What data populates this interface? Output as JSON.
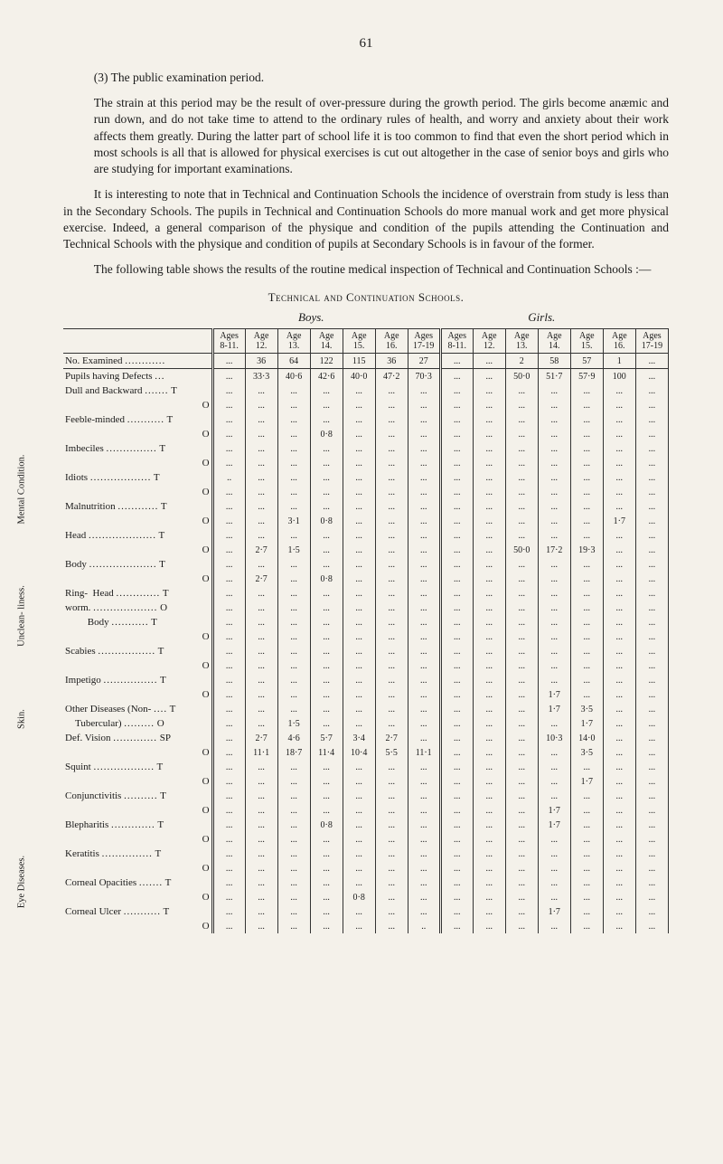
{
  "page_number": "61",
  "h3_label": "(3) The public examination period.",
  "p1": "The strain at this period may be the result of over-pressure during the growth period. The girls become anæmic and run down, and do not take time to attend to the ordinary rules of health, and worry and anxiety about their work affects them greatly. During the latter part of school life it is too common to find that even the short period which in most schools is all that is allowed for physical exercises is cut out altogether in the case of senior boys and girls who are studying for important examinations.",
  "p2": "It is interesting to note that in Technical and Continuation Schools the incidence of overstrain from study is less than in the Secondary Schools. The pupils in Technical and Continuation Schools do more manual work and get more physical exercise. Indeed, a general comparison of the physique and condition of the pupils attending the Continuation and Technical Schools with the physique and condition of pupils at Secondary Schools is in favour of the former.",
  "p3": "The following table shows the results of the routine medical inspection of Technical and Continuation Schools :—",
  "table_title": "Technical and Continuation Schools.",
  "axis_boys": "Boys.",
  "axis_girls": "Girls.",
  "columns": [
    "Ages 8-11.",
    "Age 12.",
    "Age 13.",
    "Age 14.",
    "Age 15.",
    "Age 16.",
    "Ages 17-19",
    "Ages 8-11.",
    "Age 12.",
    "Age 13.",
    "Age 14.",
    "Age 15.",
    "Age 16.",
    "Ages 17-19"
  ],
  "vert_labels": {
    "mental": "Mental Condition.",
    "unclean": "Unclean- liness.",
    "skin": "Skin.",
    "eye": "Eye Diseases."
  },
  "rows": [
    {
      "label": "No. Examined",
      "to": "",
      "v": [
        "...",
        "36",
        "64",
        "122",
        "115",
        "36",
        "27",
        "...",
        "...",
        "2",
        "58",
        "57",
        "1",
        "..."
      ]
    },
    {
      "sep": true,
      "label": "Pupils having Defects",
      "to": "",
      "v": [
        "...",
        "33·3",
        "40·6",
        "42·6",
        "40·0",
        "47·2",
        "70·3",
        "...",
        "...",
        "50·0",
        "51·7",
        "57·9",
        "100",
        "..."
      ]
    },
    {
      "label": "Dull and Backward",
      "to": "T",
      "v": [
        "...",
        "...",
        "...",
        "...",
        "...",
        "...",
        "...",
        "...",
        "...",
        "...",
        "...",
        "...",
        "...",
        "..."
      ]
    },
    {
      "label": "",
      "to": "O",
      "v": [
        "...",
        "...",
        "...",
        "...",
        "...",
        "...",
        "...",
        "...",
        "...",
        "...",
        "...",
        "...",
        "...",
        "..."
      ]
    },
    {
      "label": "Feeble-minded",
      "to": "T",
      "v": [
        "...",
        "...",
        "...",
        "...",
        "...",
        "...",
        "...",
        "...",
        "...",
        "...",
        "...",
        "...",
        "...",
        "..."
      ]
    },
    {
      "label": "",
      "to": "O",
      "v": [
        "...",
        "...",
        "...",
        "0·8",
        "...",
        "...",
        "...",
        "...",
        "...",
        "...",
        "...",
        "...",
        "...",
        "..."
      ]
    },
    {
      "label": "Imbeciles",
      "to": "T",
      "v": [
        "...",
        "...",
        "...",
        "...",
        "...",
        "...",
        "...",
        "...",
        "...",
        "...",
        "...",
        "...",
        "...",
        "..."
      ]
    },
    {
      "label": "",
      "to": "O",
      "v": [
        "...",
        "...",
        "...",
        "...",
        "...",
        "...",
        "...",
        "...",
        "...",
        "...",
        "...",
        "...",
        "...",
        "..."
      ]
    },
    {
      "label": "Idiots",
      "to": "T",
      "v": [
        "..",
        "...",
        "...",
        "...",
        "...",
        "...",
        "...",
        "...",
        "...",
        "...",
        "...",
        "...",
        "...",
        "..."
      ]
    },
    {
      "label": "",
      "to": "O",
      "v": [
        "...",
        "...",
        "...",
        "...",
        "...",
        "...",
        "...",
        "...",
        "...",
        "...",
        "...",
        "...",
        "...",
        "..."
      ]
    },
    {
      "label": "Malnutrition",
      "to": "T",
      "v": [
        "...",
        "...",
        "...",
        "...",
        "...",
        "...",
        "...",
        "...",
        "...",
        "...",
        "...",
        "...",
        "...",
        "..."
      ]
    },
    {
      "label": "",
      "to": "O",
      "v": [
        "...",
        "...",
        "3·1",
        "0·8",
        "...",
        "...",
        "...",
        "...",
        "...",
        "...",
        "...",
        "...",
        "1·7",
        "..."
      ]
    },
    {
      "label": "Head",
      "to": "T",
      "v": [
        "...",
        "...",
        "...",
        "...",
        "...",
        "...",
        "...",
        "...",
        "...",
        "...",
        "...",
        "...",
        "...",
        "..."
      ]
    },
    {
      "label": "",
      "to": "O",
      "v": [
        "...",
        "2·7",
        "1·5",
        "...",
        "...",
        "...",
        "...",
        "...",
        "...",
        "50·0",
        "17·2",
        "19·3",
        "...",
        "..."
      ]
    },
    {
      "label": "Body",
      "to": "T",
      "v": [
        "...",
        "...",
        "...",
        "...",
        "...",
        "...",
        "...",
        "...",
        "...",
        "...",
        "...",
        "...",
        "...",
        "..."
      ]
    },
    {
      "label": "",
      "to": "O",
      "v": [
        "...",
        "2·7",
        "...",
        "0·8",
        "...",
        "...",
        "...",
        "...",
        "...",
        "...",
        "...",
        "...",
        "...",
        "..."
      ]
    },
    {
      "label": "Ring-&nbsp;&nbsp;Head",
      "to": "T",
      "v": [
        "...",
        "...",
        "...",
        "...",
        "...",
        "...",
        "...",
        "...",
        "...",
        "...",
        "...",
        "...",
        "...",
        "..."
      ]
    },
    {
      "label": "worm.",
      "to": "O",
      "v": [
        "...",
        "...",
        "...",
        "...",
        "...",
        "...",
        "...",
        "...",
        "...",
        "...",
        "...",
        "...",
        "...",
        "..."
      ]
    },
    {
      "label": "&nbsp;&nbsp;&nbsp;&nbsp;&nbsp;&nbsp;&nbsp;&nbsp;&nbsp;Body",
      "to": "T",
      "v": [
        "...",
        "...",
        "...",
        "...",
        "...",
        "...",
        "...",
        "...",
        "...",
        "...",
        "...",
        "...",
        "...",
        "..."
      ]
    },
    {
      "label": "",
      "to": "O",
      "v": [
        "...",
        "...",
        "...",
        "...",
        "...",
        "...",
        "...",
        "...",
        "...",
        "...",
        "...",
        "...",
        "...",
        "..."
      ]
    },
    {
      "label": "Scabies",
      "to": "T",
      "v": [
        "...",
        "...",
        "...",
        "...",
        "...",
        "...",
        "...",
        "...",
        "...",
        "...",
        "...",
        "...",
        "...",
        "..."
      ]
    },
    {
      "label": "",
      "to": "O",
      "v": [
        "...",
        "...",
        "...",
        "...",
        "...",
        "...",
        "...",
        "...",
        "...",
        "...",
        "...",
        "...",
        "...",
        "..."
      ]
    },
    {
      "label": "Impetigo",
      "to": "T",
      "v": [
        "...",
        "...",
        "...",
        "...",
        "...",
        "...",
        "...",
        "...",
        "...",
        "...",
        "...",
        "...",
        "...",
        "..."
      ]
    },
    {
      "label": "",
      "to": "O",
      "v": [
        "...",
        "...",
        "...",
        "...",
        "...",
        "...",
        "...",
        "...",
        "...",
        "...",
        "1·7",
        "...",
        "...",
        "..."
      ]
    },
    {
      "label": "Other Diseases (Non-",
      "to": "T",
      "v": [
        "...",
        "...",
        "...",
        "...",
        "...",
        "...",
        "...",
        "...",
        "...",
        "...",
        "1·7",
        "3·5",
        "...",
        "..."
      ]
    },
    {
      "label": "&nbsp;&nbsp;&nbsp;&nbsp;Tubercular)",
      "to": "O",
      "v": [
        "...",
        "...",
        "1·5",
        "...",
        "...",
        "...",
        "...",
        "...",
        "...",
        "...",
        "...",
        "1·7",
        "...",
        "..."
      ]
    },
    {
      "label": "Def. Vision",
      "to": "SP",
      "v": [
        "...",
        "2·7",
        "4·6",
        "5·7",
        "3·4",
        "2·7",
        "...",
        "...",
        "...",
        "...",
        "10·3",
        "14·0",
        "...",
        "..."
      ]
    },
    {
      "label": "",
      "to": "O",
      "v": [
        "...",
        "11·1",
        "18·7",
        "11·4",
        "10·4",
        "5·5",
        "11·1",
        "...",
        "...",
        "...",
        "...",
        "3·5",
        "...",
        "..."
      ]
    },
    {
      "label": "Squint",
      "to": "T",
      "v": [
        "...",
        "...",
        "...",
        "...",
        "...",
        "...",
        "...",
        "...",
        "...",
        "...",
        "...",
        "...",
        "...",
        "..."
      ]
    },
    {
      "label": "",
      "to": "O",
      "v": [
        "...",
        "...",
        "...",
        "...",
        "...",
        "...",
        "...",
        "...",
        "...",
        "...",
        "...",
        "1·7",
        "...",
        "..."
      ]
    },
    {
      "label": "Conjunctivitis",
      "to": "T",
      "v": [
        "...",
        "...",
        "...",
        "...",
        "...",
        "...",
        "...",
        "...",
        "...",
        "...",
        "...",
        "...",
        "...",
        "..."
      ]
    },
    {
      "label": "",
      "to": "O",
      "v": [
        "...",
        "...",
        "...",
        "...",
        "...",
        "...",
        "...",
        "...",
        "...",
        "...",
        "1·7",
        "...",
        "...",
        "..."
      ]
    },
    {
      "label": "Blepharitis",
      "to": "T",
      "v": [
        "...",
        "...",
        "...",
        "0·8",
        "...",
        "...",
        "...",
        "...",
        "...",
        "...",
        "1·7",
        "...",
        "...",
        "..."
      ]
    },
    {
      "label": "",
      "to": "O",
      "v": [
        "...",
        "...",
        "...",
        "...",
        "...",
        "...",
        "...",
        "...",
        "...",
        "...",
        "...",
        "...",
        "...",
        "..."
      ]
    },
    {
      "label": "Keratitis",
      "to": "T",
      "v": [
        "...",
        "...",
        "...",
        "...",
        "...",
        "...",
        "...",
        "...",
        "...",
        "...",
        "...",
        "...",
        "...",
        "..."
      ]
    },
    {
      "label": "",
      "to": "O",
      "v": [
        "...",
        "...",
        "...",
        "...",
        "...",
        "...",
        "...",
        "...",
        "...",
        "...",
        "...",
        "...",
        "...",
        "..."
      ]
    },
    {
      "label": "Corneal Opacities",
      "to": "T",
      "v": [
        "...",
        "...",
        "...",
        "...",
        "...",
        "...",
        "...",
        "...",
        "...",
        "...",
        "...",
        "...",
        "...",
        "..."
      ]
    },
    {
      "label": "",
      "to": "O",
      "v": [
        "...",
        "...",
        "...",
        "...",
        "0·8",
        "...",
        "...",
        "...",
        "...",
        "...",
        "...",
        "...",
        "...",
        "..."
      ]
    },
    {
      "label": "Corneal Ulcer",
      "to": "T",
      "v": [
        "...",
        "...",
        "...",
        "...",
        "...",
        "...",
        "...",
        "...",
        "...",
        "...",
        "1·7",
        "...",
        "...",
        "..."
      ]
    },
    {
      "label": "",
      "to": "O",
      "v": [
        "...",
        "...",
        "...",
        "...",
        "...",
        "...",
        "..",
        "...",
        "...",
        "...",
        "...",
        "...",
        "...",
        "..."
      ]
    }
  ],
  "vert_ranges": {
    "mental": {
      "start": 2,
      "end": 11
    },
    "unclean": {
      "start": 12,
      "end": 15
    },
    "skin": {
      "start": 16,
      "end": 25
    },
    "eye": {
      "start": 26,
      "end": 39
    }
  },
  "colors": {
    "bg": "#f4f1ea",
    "text": "#1a1a1a",
    "line": "#333333"
  }
}
